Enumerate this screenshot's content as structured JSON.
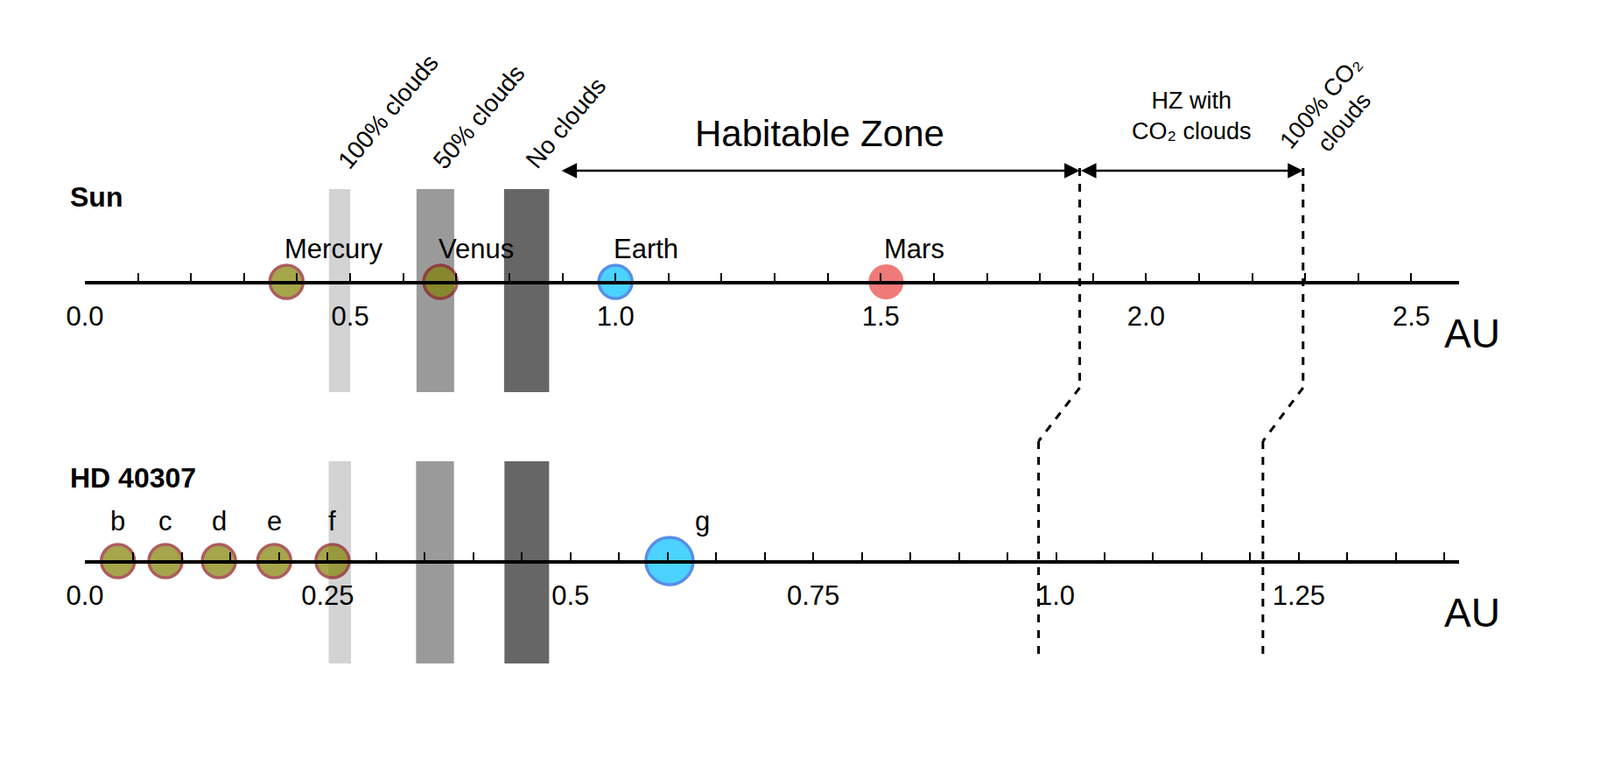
{
  "chart_data": [
    {
      "type": "scatter",
      "title": "Sun",
      "xlabel": "AU",
      "xlim": [
        0,
        2.59
      ],
      "xticks": [
        {
          "value": 0,
          "label": "0.0"
        },
        0.5,
        {
          "value": 1,
          "label": "1.0"
        },
        1.5,
        {
          "value": 2,
          "label": "2.0"
        },
        2.5
      ],
      "xminor_ticks": [
        0.1,
        0.2,
        0.3,
        0.4,
        0.6,
        0.7,
        0.8,
        0.9,
        1.1,
        1.2,
        1.3,
        1.4,
        1.6,
        1.7,
        1.8,
        1.9,
        2.1,
        2.2,
        2.3,
        2.4
      ],
      "points": [
        {
          "name": "Mercury",
          "x": 0.38,
          "color": "#808000",
          "marker": "dark_red_edge"
        },
        {
          "name": "Venus",
          "x": 0.67,
          "color": "#808000",
          "marker": "dark_red_edge"
        },
        {
          "name": "Earth",
          "x": 1.0,
          "color": "#00bfff",
          "marker": "blue_edge"
        },
        {
          "name": "Mars",
          "x": 1.51,
          "color": "#e8413f",
          "marker": "plain"
        }
      ],
      "bands": [
        {
          "label": "100% clouds",
          "x": [
            0.46,
            0.5
          ],
          "color": "#d3d3d3"
        },
        {
          "label": "50% clouds",
          "x": [
            0.625,
            0.696
          ],
          "color": "#9a9a9a"
        },
        {
          "label": "No clouds",
          "x": [
            0.79,
            0.875
          ],
          "color": "#666666"
        }
      ],
      "zones": [
        {
          "label": [
            "Habitable Zone"
          ],
          "x": [
            0.896,
            1.875
          ]
        },
        {
          "label": [
            "HZ with",
            "CO₂ clouds"
          ],
          "x": [
            1.875,
            2.296
          ]
        }
      ],
      "boundaries": [
        {
          "x": 1.875
        },
        {
          "x": 2.296,
          "label": [
            "100% CO₂",
            "clouds"
          ]
        }
      ]
    },
    {
      "type": "scatter",
      "title": "HD 40307",
      "xlabel": "AU",
      "xlim": [
        0,
        1.415
      ],
      "xticks": [
        {
          "value": 0,
          "label": "0.0"
        },
        0.25,
        0.5,
        0.75,
        {
          "value": 1,
          "label": "1.0"
        },
        1.25
      ],
      "xminor_ticks": [
        0.05,
        0.1,
        0.15,
        0.2,
        0.3,
        0.35,
        0.4,
        0.45,
        0.55,
        0.6,
        0.65,
        0.7,
        0.8,
        0.85,
        0.9,
        0.95,
        1.05,
        1.1,
        1.15,
        1.2,
        1.3,
        1.35,
        1.4
      ],
      "points": [
        {
          "name": "b",
          "x": 0.034,
          "color": "#808000",
          "marker": "dark_red_edge"
        },
        {
          "name": "c",
          "x": 0.083,
          "color": "#808000",
          "marker": "dark_red_edge"
        },
        {
          "name": "d",
          "x": 0.138,
          "color": "#808000",
          "marker": "dark_red_edge"
        },
        {
          "name": "e",
          "x": 0.195,
          "color": "#808000",
          "marker": "dark_red_edge"
        },
        {
          "name": "f",
          "x": 0.255,
          "color": "#808000",
          "marker": "dark_red_edge"
        },
        {
          "name": "g",
          "x": 0.602,
          "color": "#00bfff",
          "marker": "large_blue_edge"
        }
      ],
      "bands": [
        {
          "x": [
            0.251,
            0.274
          ],
          "color": "#d3d3d3"
        },
        {
          "x": [
            0.341,
            0.38
          ],
          "color": "#9a9a9a"
        },
        {
          "x": [
            0.432,
            0.478
          ],
          "color": "#666666"
        }
      ],
      "boundaries": [
        {
          "x": 0.982
        },
        {
          "x": 1.213
        }
      ]
    }
  ]
}
